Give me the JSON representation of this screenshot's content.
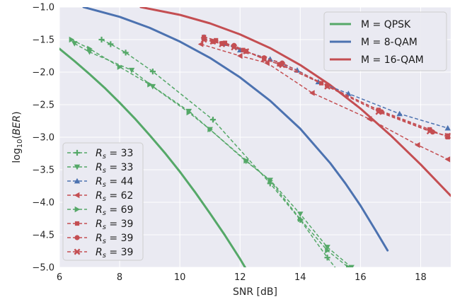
{
  "chart_data": {
    "type": "line",
    "xlabel": "SNR [dB]",
    "ylabel_prefix": "log",
    "ylabel_sub": "10",
    "ylabel_arg": "BER",
    "xlim": [
      6,
      19
    ],
    "ylim": [
      -5.0,
      -1.0
    ],
    "x_ticks": [
      6,
      8,
      10,
      12,
      14,
      16,
      18
    ],
    "y_ticks": [
      -1.0,
      -1.5,
      -2.0,
      -2.5,
      -3.0,
      -3.5,
      -4.0,
      -4.5,
      -5.0
    ],
    "x_tick_labels": [
      "6",
      "8",
      "10",
      "12",
      "14",
      "16",
      "18"
    ],
    "y_tick_labels": [
      "−1.0",
      "−1.5",
      "−2.0",
      "−2.5",
      "−3.0",
      "−3.5",
      "−4.0",
      "−4.5",
      "−5.0"
    ],
    "grid": true,
    "background": "#eaeaf2",
    "colors": {
      "green": "#55a868",
      "blue": "#4c72b0",
      "red": "#c44e52"
    },
    "theory_legend_position": "top-right",
    "theory_series": [
      {
        "name": "M = QPSK",
        "color": "#55a868",
        "x": [
          6.0,
          6.5,
          7.0,
          7.5,
          8.0,
          8.5,
          9.0,
          9.5,
          10.0,
          10.5,
          11.0,
          11.5,
          12.0,
          12.5,
          13.0
        ],
        "y": [
          -1.64,
          -1.83,
          -2.03,
          -2.24,
          -2.47,
          -2.71,
          -2.97,
          -3.24,
          -3.53,
          -3.84,
          -4.17,
          -4.51,
          -4.87,
          -5.26,
          -5.67
        ]
      },
      {
        "name": "M = 8-QAM",
        "color": "#4c72b0",
        "x": [
          6.8,
          8.0,
          9.0,
          10.0,
          11.0,
          12.0,
          13.0,
          14.0,
          15.0,
          15.5,
          16.0,
          16.5,
          16.9
        ],
        "y": [
          -1.0,
          -1.15,
          -1.32,
          -1.53,
          -1.78,
          -2.08,
          -2.44,
          -2.87,
          -3.4,
          -3.71,
          -4.05,
          -4.43,
          -4.74
        ]
      },
      {
        "name": "M = 16-QAM",
        "color": "#c44e52",
        "x": [
          8.7,
          10.0,
          11.0,
          12.0,
          13.0,
          14.0,
          15.0,
          16.0,
          17.0,
          18.0,
          19.0
        ],
        "y": [
          -1.0,
          -1.12,
          -1.25,
          -1.42,
          -1.63,
          -1.89,
          -2.2,
          -2.56,
          -2.97,
          -3.42,
          -3.9
        ]
      }
    ],
    "sim_legend_position": "bottom-left",
    "sim_series": [
      {
        "name_base": "R",
        "name_sub": "s",
        "name_eq": " = 33",
        "color": "#55a868",
        "marker": "plus",
        "x": [
          7.4,
          7.7,
          8.2,
          9.1,
          11.1,
          13.0,
          14.0,
          14.9,
          15.5
        ],
        "y": [
          -1.5,
          -1.57,
          -1.7,
          -1.99,
          -2.73,
          -3.71,
          -4.27,
          -4.85,
          -5.2
        ]
      },
      {
        "name_base": "R",
        "name_sub": "s",
        "name_eq": " = 33",
        "color": "#55a868",
        "marker": "triangle-down",
        "x": [
          6.5,
          7.0,
          8.4,
          9.1,
          10.3,
          11.0,
          12.2,
          13.0,
          14.0,
          14.9,
          15.7
        ],
        "y": [
          -1.56,
          -1.69,
          -1.97,
          -2.22,
          -2.6,
          -2.88,
          -3.37,
          -3.66,
          -4.18,
          -4.69,
          -5.0
        ]
      },
      {
        "name_base": "R",
        "name_sub": "s",
        "name_eq": " = 44",
        "color": "#4c72b0",
        "marker": "triangle-up",
        "x": [
          10.8,
          11.5,
          12.0,
          13.0,
          13.9,
          14.6,
          15.6,
          17.3,
          18.9
        ],
        "y": [
          -1.46,
          -1.56,
          -1.66,
          -1.8,
          -1.97,
          -2.15,
          -2.33,
          -2.64,
          -2.86
        ]
      },
      {
        "name_base": "R",
        "name_sub": "s",
        "name_eq": " = 62",
        "color": "#c44e52",
        "marker": "triangle-left",
        "x": [
          10.7,
          12.0,
          12.9,
          14.4,
          16.3,
          17.9,
          18.9
        ],
        "y": [
          -1.57,
          -1.75,
          -1.86,
          -2.32,
          -2.72,
          -3.12,
          -3.34
        ]
      },
      {
        "name_base": "R",
        "name_sub": "s",
        "name_eq": " = 69",
        "color": "#55a868",
        "marker": "triangle-right",
        "x": [
          6.4,
          7.0,
          8.0,
          9.0,
          10.3,
          11.0,
          12.2,
          13.0,
          14.0,
          14.9,
          15.6
        ],
        "y": [
          -1.5,
          -1.64,
          -1.92,
          -2.19,
          -2.62,
          -2.88,
          -3.36,
          -3.67,
          -4.26,
          -4.74,
          -5.0
        ]
      },
      {
        "name_base": "R",
        "name_sub": "s",
        "name_eq": " = 39",
        "color": "#c44e52",
        "marker": "square",
        "x": [
          10.8,
          11.2,
          11.5,
          11.8,
          12.1,
          12.8,
          13.3,
          14.7,
          16.6,
          18.3,
          18.9
        ],
        "y": [
          -1.46,
          -1.51,
          -1.55,
          -1.6,
          -1.66,
          -1.8,
          -1.88,
          -2.17,
          -2.58,
          -2.88,
          -3.0
        ]
      },
      {
        "name_base": "R",
        "name_sub": "s",
        "name_eq": " = 39",
        "color": "#c44e52",
        "marker": "circle",
        "x": [
          10.8,
          11.1,
          11.4,
          11.8,
          12.2,
          12.8,
          13.4,
          14.9,
          16.7,
          18.4,
          18.9
        ],
        "y": [
          -1.49,
          -1.53,
          -1.56,
          -1.59,
          -1.68,
          -1.78,
          -1.86,
          -2.21,
          -2.61,
          -2.92,
          -2.98
        ]
      },
      {
        "name_base": "R",
        "name_sub": "s",
        "name_eq": " = 39",
        "color": "#c44e52",
        "marker": "x",
        "x": [
          10.8,
          11.1,
          11.4,
          11.8,
          12.2,
          12.8,
          13.4,
          14.9,
          16.6,
          18.3,
          18.9
        ],
        "y": [
          -1.5,
          -1.53,
          -1.57,
          -1.62,
          -1.68,
          -1.8,
          -1.89,
          -2.22,
          -2.61,
          -2.91,
          -2.98
        ]
      }
    ]
  }
}
